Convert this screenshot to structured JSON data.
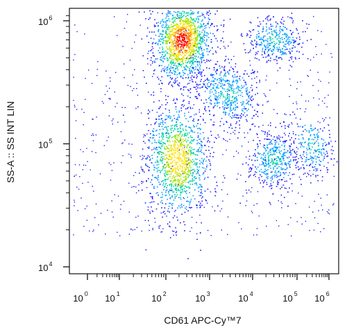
{
  "chart_data": {
    "type": "scatter",
    "style": "density dot plot (flow cytometry)",
    "xlabel": "CD61 APC-Cy™7",
    "ylabel": "SS-A :: SS INT LIN",
    "x_scale": "biexponential (log-like)",
    "y_scale": "log",
    "x_ticks": [
      {
        "base": "10",
        "exp": "0",
        "value": 1
      },
      {
        "base": "10",
        "exp": "1",
        "value": 10
      },
      {
        "base": "10",
        "exp": "2",
        "value": 100
      },
      {
        "base": "10",
        "exp": "3",
        "value": 1000
      },
      {
        "base": "10",
        "exp": "4",
        "value": 10000
      },
      {
        "base": "10",
        "exp": "5",
        "value": 100000
      },
      {
        "base": "10",
        "exp": "6",
        "value": 1000000
      }
    ],
    "y_ticks": [
      {
        "base": "10",
        "exp": "4",
        "value": 10000
      },
      {
        "base": "10",
        "exp": "5",
        "value": 100000
      },
      {
        "base": "10",
        "exp": "6",
        "value": 1000000
      }
    ],
    "ylim": [
      10000,
      1200000
    ],
    "xlim_decades": [
      0,
      6
    ],
    "grid": false,
    "legend": "none",
    "colormap": [
      "#1a1aff",
      "#00a0ff",
      "#00d4a0",
      "#a8e000",
      "#ffe000",
      "#ff8000",
      "#ff0000"
    ],
    "populations": [
      {
        "x_center": 230,
        "y_center": 700000,
        "relative_count": 1.0,
        "peak_density": "high"
      },
      {
        "x_center": 180,
        "y_center": 75000,
        "relative_count": 0.85,
        "peak_density": "medium-high"
      },
      {
        "x_center": 2500,
        "y_center": 260000,
        "relative_count": 0.35,
        "peak_density": "low"
      },
      {
        "x_center": 30000,
        "y_center": 700000,
        "relative_count": 0.25,
        "peak_density": "low"
      },
      {
        "x_center": 30000,
        "y_center": 75000,
        "relative_count": 0.3,
        "peak_density": "low"
      },
      {
        "x_center": 300000,
        "y_center": 95000,
        "relative_count": 0.15,
        "peak_density": "low"
      }
    ]
  }
}
